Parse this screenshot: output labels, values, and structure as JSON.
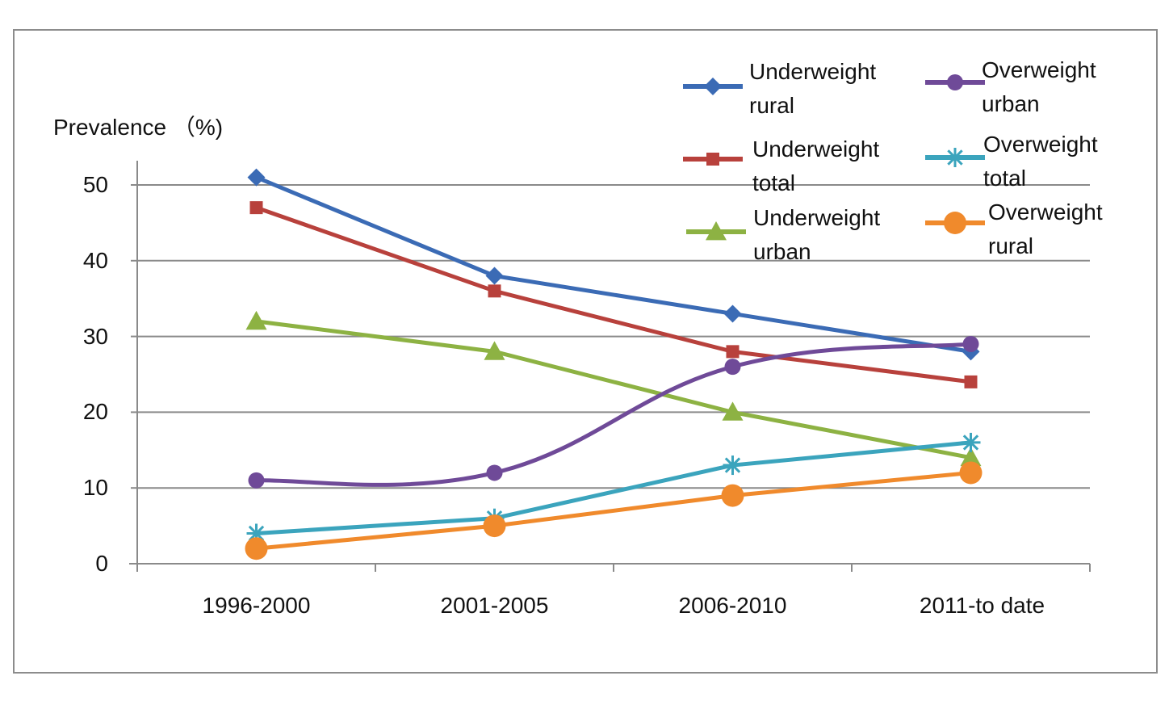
{
  "chart_data": {
    "type": "line",
    "title": "",
    "ylabel": "Prevalence （%)",
    "xlabel": "",
    "ylim": [
      0,
      50
    ],
    "yticks": [
      "0",
      "10",
      "20",
      "30",
      "40",
      "50"
    ],
    "categories": [
      "1996-2000",
      "2001-2005",
      "2006-2010",
      "2011-to date"
    ],
    "grid": true,
    "legend_position": "top-right",
    "series": [
      {
        "name": "Underweight rural",
        "line1": "Underweight",
        "line2": "rural",
        "color": "#3b6bb5",
        "marker": "diamond",
        "values": [
          51,
          38,
          33,
          28
        ]
      },
      {
        "name": "Underweight total",
        "line1": "Underweight",
        "line2": "total",
        "color": "#b8413c",
        "marker": "square",
        "values": [
          47,
          36,
          28,
          24
        ]
      },
      {
        "name": "Underweight urban",
        "line1": "Underweight",
        "line2": "urban",
        "color": "#8db243",
        "marker": "triangle",
        "values": [
          32,
          28,
          20,
          14
        ]
      },
      {
        "name": "Overweight urban",
        "line1": "Overweight",
        "line2": "urban",
        "color": "#6f4a98",
        "marker": "circle-small",
        "values": [
          11,
          12,
          26,
          29
        ]
      },
      {
        "name": "Overweight total",
        "line1": "Overweight",
        "line2": "total",
        "color": "#3ba4bd",
        "marker": "asterisk",
        "values": [
          4,
          6,
          13,
          16
        ]
      },
      {
        "name": "Overweight rural",
        "line1": "Overweight",
        "line2": "rural",
        "color": "#f08a2c",
        "marker": "circle-large",
        "values": [
          2,
          5,
          9,
          12
        ]
      }
    ]
  }
}
